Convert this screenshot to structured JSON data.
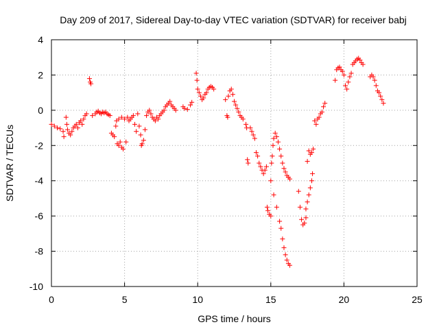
{
  "chart_data": {
    "type": "scatter",
    "title": "Day 209 of 2017, Sidereal Day-to-day VTEC variation (SDTVAR) for receiver babj",
    "xlabel": "GPS time / hours",
    "ylabel": "SDTVAR / TECUs",
    "xlim": [
      0,
      25
    ],
    "ylim": [
      -10,
      4
    ],
    "xticks": [
      0,
      5,
      10,
      15,
      20,
      25
    ],
    "yticks": [
      4,
      2,
      0,
      -2,
      -4,
      -6,
      -8,
      -10
    ],
    "xtick_labels": [
      "0",
      "5",
      "10",
      "15",
      "20",
      "25"
    ],
    "ytick_labels": [
      "4",
      "2",
      "0",
      "-2",
      "-4",
      "-6",
      "-8",
      "-10"
    ],
    "grid": true,
    "marker": "plus",
    "color": "#ff0000",
    "series": [
      {
        "name": "SDTVAR",
        "points": [
          [
            0.0,
            -0.8
          ],
          [
            0.2,
            -0.9
          ],
          [
            0.4,
            -1.0
          ],
          [
            0.6,
            -1.05
          ],
          [
            0.8,
            -1.2
          ],
          [
            0.85,
            -1.5
          ],
          [
            1.0,
            -0.4
          ],
          [
            1.05,
            -0.8
          ],
          [
            1.1,
            -1.1
          ],
          [
            1.2,
            -1.3
          ],
          [
            1.3,
            -1.4
          ],
          [
            1.4,
            -1.2
          ],
          [
            1.5,
            -1.0
          ],
          [
            1.6,
            -0.9
          ],
          [
            1.7,
            -0.8
          ],
          [
            1.8,
            -1.0
          ],
          [
            1.9,
            -0.7
          ],
          [
            2.0,
            -0.6
          ],
          [
            2.1,
            -0.8
          ],
          [
            2.2,
            -0.5
          ],
          [
            2.3,
            -0.3
          ],
          [
            2.4,
            -0.2
          ],
          [
            2.6,
            1.8
          ],
          [
            2.65,
            1.6
          ],
          [
            2.7,
            1.5
          ],
          [
            2.8,
            -0.3
          ],
          [
            3.0,
            -0.2
          ],
          [
            3.1,
            -0.1
          ],
          [
            3.2,
            -0.05
          ],
          [
            3.3,
            -0.15
          ],
          [
            3.4,
            -0.2
          ],
          [
            3.5,
            -0.1
          ],
          [
            3.6,
            -0.15
          ],
          [
            3.7,
            -0.1
          ],
          [
            3.8,
            -0.2
          ],
          [
            3.9,
            -0.25
          ],
          [
            4.0,
            -0.3
          ],
          [
            4.1,
            -1.3
          ],
          [
            4.2,
            -1.4
          ],
          [
            4.3,
            -1.5
          ],
          [
            4.4,
            -0.9
          ],
          [
            4.45,
            -0.6
          ],
          [
            4.5,
            -1.9
          ],
          [
            4.6,
            -2.0
          ],
          [
            4.7,
            -1.8
          ],
          [
            4.8,
            -2.1
          ],
          [
            4.9,
            -2.2
          ],
          [
            4.6,
            -0.5
          ],
          [
            4.8,
            -0.4
          ],
          [
            5.0,
            -0.5
          ],
          [
            5.1,
            -1.8
          ],
          [
            5.2,
            -0.4
          ],
          [
            5.3,
            -0.6
          ],
          [
            5.4,
            -0.5
          ],
          [
            5.5,
            -0.4
          ],
          [
            5.6,
            -0.3
          ],
          [
            5.7,
            -0.8
          ],
          [
            5.8,
            -1.2
          ],
          [
            5.9,
            -0.2
          ],
          [
            6.0,
            -0.9
          ],
          [
            6.1,
            -1.4
          ],
          [
            6.15,
            -2.0
          ],
          [
            6.2,
            -1.9
          ],
          [
            6.3,
            -1.7
          ],
          [
            6.4,
            -1.1
          ],
          [
            6.5,
            -0.3
          ],
          [
            6.6,
            -0.1
          ],
          [
            6.7,
            0.0
          ],
          [
            6.8,
            -0.2
          ],
          [
            6.9,
            -0.4
          ],
          [
            7.0,
            -0.5
          ],
          [
            7.1,
            -0.6
          ],
          [
            7.2,
            -0.4
          ],
          [
            7.3,
            -0.5
          ],
          [
            7.4,
            -0.3
          ],
          [
            7.5,
            -0.2
          ],
          [
            7.6,
            -0.1
          ],
          [
            7.7,
            0.0
          ],
          [
            7.8,
            0.2
          ],
          [
            7.9,
            0.3
          ],
          [
            8.0,
            0.4
          ],
          [
            8.1,
            0.5
          ],
          [
            8.2,
            0.3
          ],
          [
            8.3,
            0.2
          ],
          [
            8.4,
            0.1
          ],
          [
            8.5,
            0.0
          ],
          [
            9.0,
            0.2
          ],
          [
            9.1,
            0.1
          ],
          [
            9.3,
            0.05
          ],
          [
            9.5,
            0.3
          ],
          [
            9.6,
            0.45
          ],
          [
            9.9,
            2.1
          ],
          [
            9.95,
            1.7
          ],
          [
            10.0,
            1.2
          ],
          [
            10.1,
            1.0
          ],
          [
            10.2,
            0.8
          ],
          [
            10.3,
            0.6
          ],
          [
            10.4,
            0.7
          ],
          [
            10.5,
            0.9
          ],
          [
            10.6,
            1.0
          ],
          [
            10.7,
            1.2
          ],
          [
            10.8,
            1.3
          ],
          [
            10.9,
            1.35
          ],
          [
            11.0,
            1.3
          ],
          [
            11.1,
            1.2
          ],
          [
            11.9,
            0.6
          ],
          [
            12.0,
            -0.3
          ],
          [
            12.05,
            -0.4
          ],
          [
            12.1,
            0.8
          ],
          [
            12.2,
            1.1
          ],
          [
            12.3,
            1.2
          ],
          [
            12.4,
            0.9
          ],
          [
            12.5,
            0.5
          ],
          [
            12.6,
            0.3
          ],
          [
            12.7,
            0.1
          ],
          [
            12.8,
            -0.1
          ],
          [
            12.9,
            -0.3
          ],
          [
            13.0,
            -0.4
          ],
          [
            13.1,
            -0.5
          ],
          [
            13.3,
            -0.8
          ],
          [
            13.35,
            -1.0
          ],
          [
            13.4,
            -2.8
          ],
          [
            13.45,
            -3.0
          ],
          [
            13.6,
            -1.0
          ],
          [
            13.7,
            -1.2
          ],
          [
            13.8,
            -1.4
          ],
          [
            13.9,
            -1.6
          ],
          [
            14.0,
            -2.4
          ],
          [
            14.1,
            -2.6
          ],
          [
            14.2,
            -3.0
          ],
          [
            14.3,
            -3.2
          ],
          [
            14.4,
            -3.4
          ],
          [
            14.5,
            -3.6
          ],
          [
            14.6,
            -3.4
          ],
          [
            14.7,
            -3.2
          ],
          [
            14.75,
            -5.5
          ],
          [
            14.8,
            -5.7
          ],
          [
            14.9,
            -5.9
          ],
          [
            15.0,
            -6.0
          ],
          [
            15.05,
            -3.0
          ],
          [
            15.1,
            -2.6
          ],
          [
            15.15,
            -2.0
          ],
          [
            15.2,
            -1.6
          ],
          [
            15.3,
            -1.3
          ],
          [
            15.4,
            -1.5
          ],
          [
            15.5,
            -1.8
          ],
          [
            15.6,
            -2.2
          ],
          [
            15.7,
            -2.6
          ],
          [
            15.8,
            -3.0
          ],
          [
            15.9,
            -3.3
          ],
          [
            16.0,
            -3.5
          ],
          [
            16.1,
            -3.7
          ],
          [
            16.2,
            -3.8
          ],
          [
            16.3,
            -3.9
          ],
          [
            15.0,
            -4.0
          ],
          [
            15.2,
            -4.8
          ],
          [
            15.4,
            -5.5
          ],
          [
            15.6,
            -6.3
          ],
          [
            15.7,
            -6.7
          ],
          [
            15.8,
            -7.3
          ],
          [
            15.9,
            -7.8
          ],
          [
            16.0,
            -8.2
          ],
          [
            16.1,
            -8.5
          ],
          [
            16.2,
            -8.7
          ],
          [
            16.3,
            -8.8
          ],
          [
            16.9,
            -4.6
          ],
          [
            17.0,
            -5.5
          ],
          [
            17.1,
            -6.2
          ],
          [
            17.2,
            -6.5
          ],
          [
            17.3,
            -6.4
          ],
          [
            17.4,
            -6.1
          ],
          [
            17.5,
            -2.9
          ],
          [
            17.6,
            -2.3
          ],
          [
            17.7,
            -2.5
          ],
          [
            17.8,
            -2.4
          ],
          [
            17.9,
            -2.2
          ],
          [
            17.85,
            -3.6
          ],
          [
            17.8,
            -4.0
          ],
          [
            17.7,
            -4.4
          ],
          [
            17.6,
            -4.8
          ],
          [
            17.5,
            -5.2
          ],
          [
            17.4,
            -5.6
          ],
          [
            18.0,
            -0.6
          ],
          [
            18.1,
            -0.8
          ],
          [
            18.2,
            -0.5
          ],
          [
            18.3,
            -0.4
          ],
          [
            18.4,
            -0.2
          ],
          [
            18.5,
            -0.1
          ],
          [
            18.6,
            0.2
          ],
          [
            18.7,
            0.4
          ],
          [
            19.4,
            1.7
          ],
          [
            19.5,
            2.3
          ],
          [
            19.6,
            2.4
          ],
          [
            19.7,
            2.45
          ],
          [
            19.8,
            2.3
          ],
          [
            19.9,
            2.2
          ],
          [
            20.0,
            2.0
          ],
          [
            20.1,
            1.4
          ],
          [
            20.2,
            1.2
          ],
          [
            20.3,
            1.6
          ],
          [
            20.4,
            1.9
          ],
          [
            20.5,
            2.1
          ],
          [
            20.6,
            2.6
          ],
          [
            20.7,
            2.7
          ],
          [
            20.8,
            2.8
          ],
          [
            20.9,
            2.9
          ],
          [
            21.0,
            2.95
          ],
          [
            21.1,
            2.85
          ],
          [
            21.2,
            2.7
          ],
          [
            21.3,
            2.6
          ],
          [
            21.8,
            1.9
          ],
          [
            21.9,
            2.0
          ],
          [
            22.0,
            1.9
          ],
          [
            22.1,
            1.7
          ],
          [
            22.2,
            1.4
          ],
          [
            22.3,
            1.1
          ],
          [
            22.4,
            1.0
          ],
          [
            22.5,
            0.8
          ],
          [
            22.6,
            0.6
          ],
          [
            22.7,
            0.4
          ]
        ]
      }
    ]
  }
}
